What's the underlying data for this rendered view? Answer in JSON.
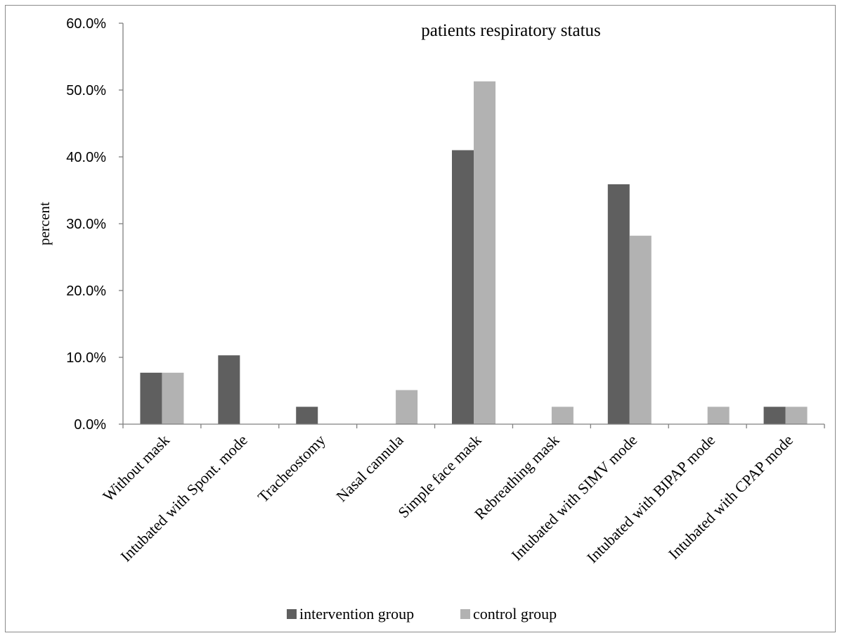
{
  "chart_data": {
    "type": "bar",
    "title": "patients respiratory status",
    "xlabel": "",
    "ylabel": "percent",
    "ylim": [
      0,
      60
    ],
    "yticks": [
      "0.0%",
      "10.0%",
      "20.0%",
      "30.0%",
      "40.0%",
      "50.0%",
      "60.0%"
    ],
    "grid": false,
    "legend_position": "bottom",
    "categories": [
      "Without mask",
      "Intubated with Spont. mode",
      "Tracheostomy",
      "Nasal cannula",
      "Simple face mask",
      "Rebreathing mask",
      "Intubated with SIMV mode",
      "Intubated with BIPAP mode",
      "Intubated with CPAP mode"
    ],
    "series": [
      {
        "name": "intervention group",
        "color": "#5f5f5f",
        "values": [
          7.7,
          10.3,
          2.6,
          0.0,
          41.0,
          0.0,
          35.9,
          0.0,
          2.6
        ]
      },
      {
        "name": "control group",
        "color": "#b2b2b2",
        "values": [
          7.7,
          0.0,
          0.0,
          5.1,
          51.3,
          2.6,
          28.2,
          2.6,
          2.6
        ]
      }
    ]
  }
}
